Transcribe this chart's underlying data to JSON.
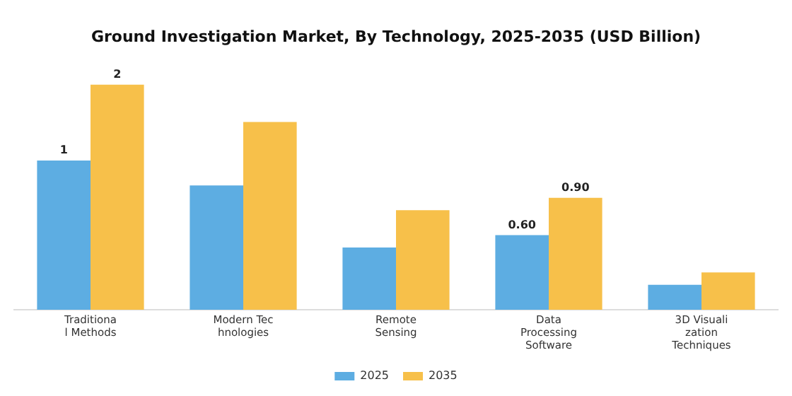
{
  "chart_data": {
    "type": "bar",
    "title": "Ground Investigation Market, By Technology, 2025-2035 (USD Billion)",
    "categories": [
      "Traditiona\nl Methods",
      "Modern Tec\nhnologies",
      "Remote\nSensing",
      "Data\nProcessing\nSoftware",
      "3D Visuali\nzation\nTechniques"
    ],
    "series": [
      {
        "name": "2025",
        "color": "#5dade2",
        "values": [
          1.2,
          1.0,
          0.5,
          0.6,
          0.2
        ],
        "value_labels": [
          "1",
          null,
          null,
          "0.60",
          null
        ]
      },
      {
        "name": "2035",
        "color": "#f7c04a",
        "values": [
          1.81,
          1.51,
          0.8,
          0.9,
          0.3
        ],
        "value_labels": [
          "2",
          null,
          null,
          "0.90",
          null
        ]
      }
    ],
    "tick_labels": "x",
    "grid": false,
    "legend": "bottom"
  }
}
